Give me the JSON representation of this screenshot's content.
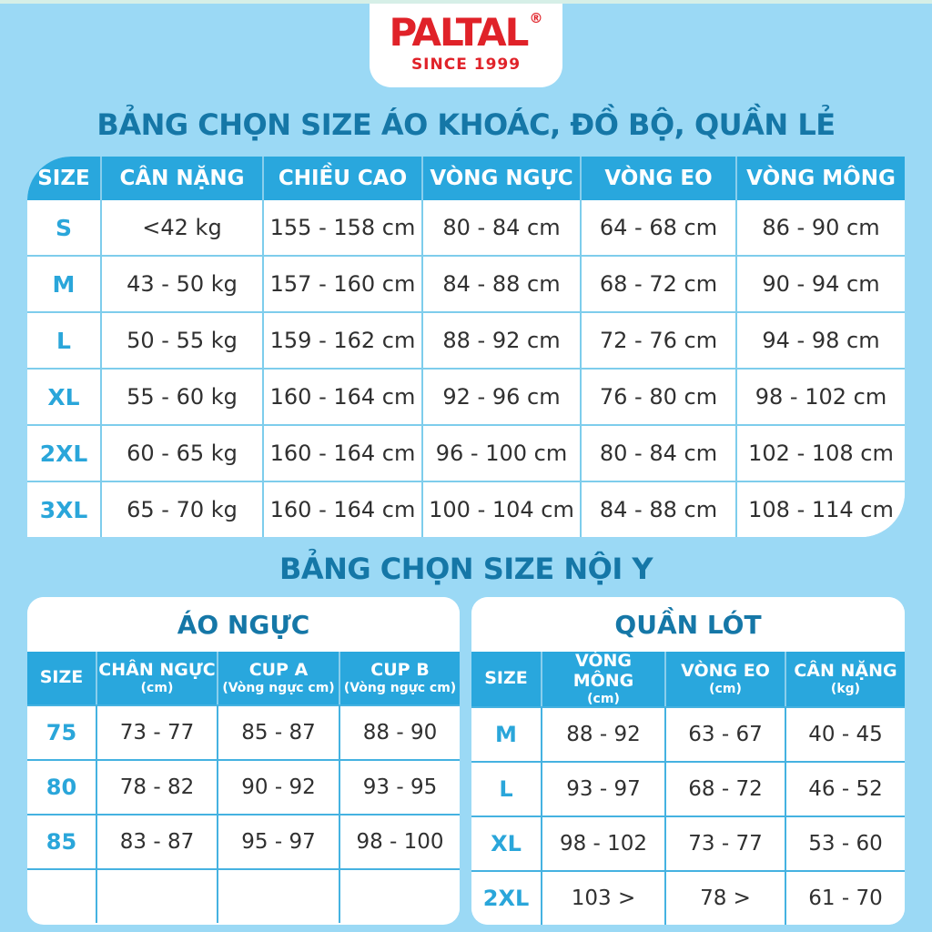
{
  "colors": {
    "background": "#9bd9f5",
    "header_blue": "#29a7dd",
    "title_blue": "#1577a7",
    "size_label_blue": "#2aa6da",
    "logo_red": "#e02229",
    "body_text": "#303030"
  },
  "logo": {
    "brand": "PALTAL",
    "registered_mark": "®",
    "tagline": "SINCE 1999"
  },
  "outerwear_section": {
    "title": "BẢNG CHỌN SIZE ÁO KHOÁC, ĐỒ BỘ, QUẦN LẺ",
    "headers": [
      "SIZE",
      "CÂN NẶNG",
      "CHIỀU CAO",
      "VÒNG NGỰC",
      "VÒNG EO",
      "VÒNG MÔNG"
    ],
    "rows": [
      [
        "S",
        "<42 kg",
        "155 - 158 cm",
        "80 - 84 cm",
        "64 - 68 cm",
        "86 - 90 cm"
      ],
      [
        "M",
        "43 - 50 kg",
        "157 - 160 cm",
        "84 - 88 cm",
        "68 - 72 cm",
        "90 - 94 cm"
      ],
      [
        "L",
        "50 - 55 kg",
        "159 - 162 cm",
        "88 - 92 cm",
        "72 - 76 cm",
        "94 - 98 cm"
      ],
      [
        "XL",
        "55 - 60 kg",
        "160 - 164 cm",
        "92 - 96 cm",
        "76 - 80 cm",
        "98 - 102 cm"
      ],
      [
        "2XL",
        "60 - 65 kg",
        "160 - 164 cm",
        "96 - 100 cm",
        "80 - 84 cm",
        "102 - 108 cm"
      ],
      [
        "3XL",
        "65 - 70 kg",
        "160 - 164 cm",
        "100 - 104 cm",
        "84 - 88 cm",
        "108 - 114 cm"
      ]
    ]
  },
  "underwear_section": {
    "title": "BẢNG CHỌN SIZE NỘI Y",
    "bra_table": {
      "title": "ÁO NGỰC",
      "headers": [
        {
          "main": "SIZE",
          "sub": ""
        },
        {
          "main": "CHÂN NGỰC",
          "sub": "(cm)"
        },
        {
          "main": "CUP A",
          "sub": "(Vòng ngực cm)"
        },
        {
          "main": "CUP B",
          "sub": "(Vòng ngực cm)"
        }
      ],
      "rows": [
        [
          "75",
          "73 - 77",
          "85 - 87",
          "88 - 90"
        ],
        [
          "80",
          "78 - 82",
          "90 - 92",
          "93 - 95"
        ],
        [
          "85",
          "83 - 87",
          "95 - 97",
          "98 - 100"
        ],
        [
          "",
          "",
          "",
          ""
        ]
      ]
    },
    "panties_table": {
      "title": "QUẦN LÓT",
      "headers": [
        {
          "main": "SIZE",
          "sub": ""
        },
        {
          "main": "VÒNG MÔNG",
          "sub": "(cm)"
        },
        {
          "main": "VÒNG EO",
          "sub": "(cm)"
        },
        {
          "main": "CÂN NẶNG",
          "sub": "(kg)"
        }
      ],
      "rows": [
        [
          "M",
          "88 - 92",
          "63 - 67",
          "40 - 45"
        ],
        [
          "L",
          "93 - 97",
          "68 - 72",
          "46 - 52"
        ],
        [
          "XL",
          "98 - 102",
          "73 - 77",
          "53 - 60"
        ],
        [
          "2XL",
          "103 >",
          "78 >",
          "61 - 70"
        ]
      ]
    }
  }
}
